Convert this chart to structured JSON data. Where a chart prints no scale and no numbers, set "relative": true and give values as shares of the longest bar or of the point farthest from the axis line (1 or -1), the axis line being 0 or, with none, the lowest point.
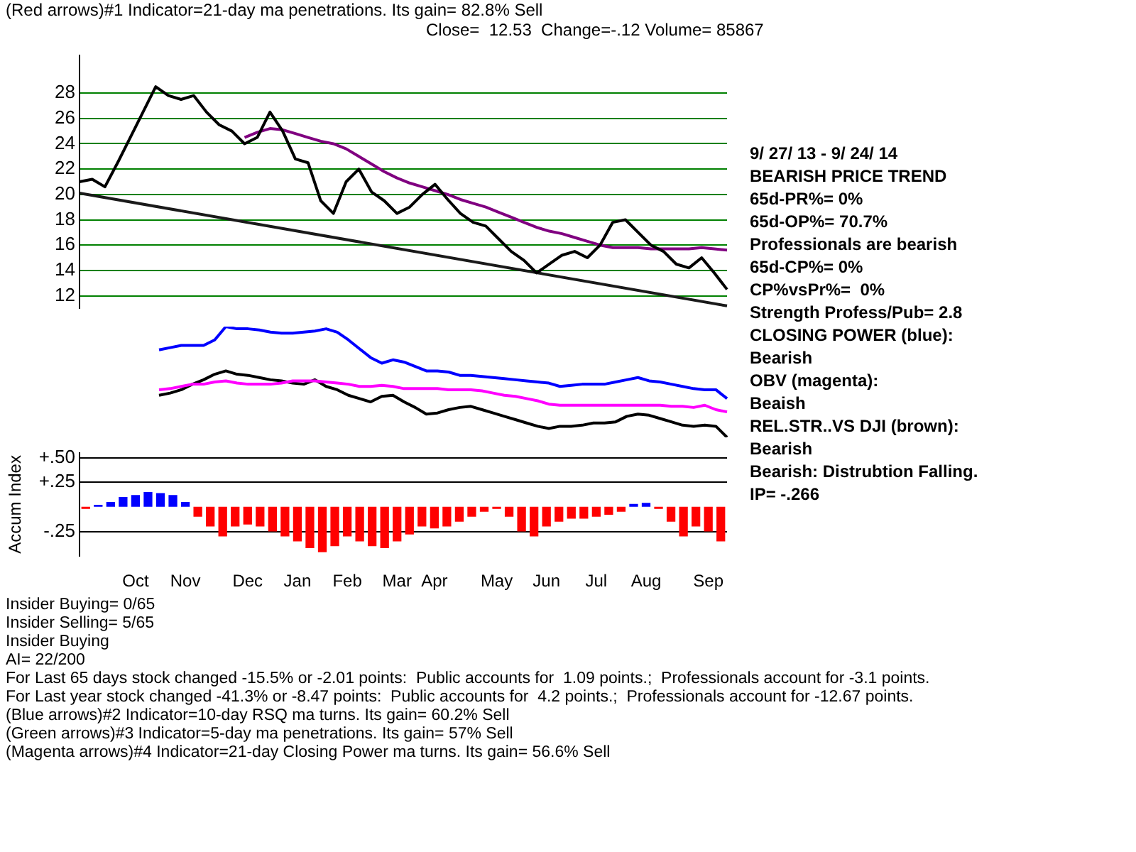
{
  "chart_data": [
    {
      "type": "line",
      "title": "(Red arrows)#1 Indicator=21-day ma penetrations. Its gain= 82.8% Sell",
      "subtitle": "Close=  12.53  Change=-.12 Volume= 85867",
      "categories": [
        null,
        null,
        null,
        null,
        null,
        null,
        null,
        null,
        null,
        null,
        null,
        null,
        null,
        null,
        null,
        null,
        null,
        null,
        null,
        null,
        null,
        null,
        null,
        null,
        null,
        null,
        null,
        null,
        null,
        null,
        null,
        null,
        null,
        null,
        null,
        null,
        null,
        null,
        null,
        null,
        null,
        null,
        null,
        null,
        null,
        null,
        null,
        null,
        null,
        null,
        null,
        null
      ],
      "series": [
        {
          "color": "#000000",
          "values": [
            21.0,
            21.2,
            20.6,
            22.5,
            24.5,
            26.5,
            28.5,
            27.8,
            27.5,
            27.8,
            26.5,
            25.5,
            25.0,
            24.0,
            24.5,
            26.5,
            25.0,
            22.8,
            22.5,
            19.5,
            18.5,
            21.0,
            22.0,
            20.2,
            19.5,
            18.5,
            19.0,
            20.0,
            20.8,
            19.6,
            18.5,
            17.8,
            17.5,
            16.5,
            15.5,
            14.8,
            13.8,
            14.5,
            15.2,
            15.5,
            15.0,
            16.0,
            17.8,
            18.0,
            17.0,
            16.0,
            15.5,
            14.5,
            14.2,
            15.0,
            13.8,
            12.5
          ]
        },
        {
          "color": "#800080",
          "values": [
            null,
            null,
            null,
            null,
            null,
            null,
            null,
            null,
            null,
            null,
            null,
            null,
            null,
            24.5,
            24.9,
            25.2,
            25.1,
            24.8,
            24.5,
            24.2,
            24.0,
            23.6,
            23.0,
            22.4,
            21.8,
            21.3,
            20.9,
            20.6,
            20.3,
            20.0,
            19.6,
            19.3,
            19.0,
            18.6,
            18.2,
            17.8,
            17.4,
            17.1,
            16.9,
            16.6,
            16.3,
            16.0,
            15.8,
            15.8,
            15.8,
            15.7,
            15.7,
            15.7,
            15.7,
            15.8,
            15.7,
            15.6
          ]
        },
        {
          "color": "#1a1a1a",
          "values": [
            20.1,
            null,
            null,
            null,
            null,
            null,
            null,
            null,
            null,
            null,
            null,
            null,
            null,
            null,
            null,
            null,
            null,
            null,
            null,
            null,
            null,
            null,
            null,
            null,
            null,
            null,
            null,
            null,
            null,
            null,
            null,
            null,
            null,
            null,
            null,
            null,
            null,
            null,
            null,
            null,
            null,
            null,
            null,
            null,
            null,
            null,
            null,
            null,
            null,
            null,
            null,
            11.2
          ]
        }
      ],
      "ylim": [
        11,
        31
      ],
      "yticks": [
        12,
        14,
        16,
        18,
        20,
        22,
        24,
        26,
        28
      ],
      "grid": "y",
      "tick_labels": "y",
      "marker": "none",
      "annotations": [
        "9/ 27/ 13 - 9/ 24/ 14",
        "BEARISH PRICE TREND",
        "65d-PR%= 0%",
        "65d-OP%= 70.7%",
        "Professionals are bearish",
        "65d-CP%= 0%",
        "CP%vsPr%=  0%",
        "Strength Profess/Pub= 2.8",
        "CLOSING POWER (blue):",
        "Bearish",
        "OBV (magenta):",
        "Beaish",
        "REL.STR..VS DJI (brown):",
        "Bearish",
        "Bearish: Distrubtion Falling.",
        "IP= -.266"
      ]
    },
    {
      "type": "line",
      "relative": true,
      "tick_labels": false,
      "marker": "none",
      "categories": [
        null,
        null,
        null,
        null,
        null,
        null,
        null,
        null,
        null,
        null,
        null,
        null,
        null,
        null,
        null,
        null,
        null,
        null,
        null,
        null,
        null,
        null,
        null,
        null,
        null,
        null,
        null,
        null,
        null,
        null,
        null,
        null,
        null,
        null,
        null,
        null,
        null,
        null,
        null,
        null,
        null,
        null,
        null,
        null,
        null,
        null,
        null,
        null,
        null,
        null,
        null,
        null
      ],
      "series": [
        {
          "color": "#0000ff",
          "values": [
            0.79,
            0.81,
            0.83,
            0.83,
            0.83,
            0.88,
            1.0,
            0.98,
            0.98,
            0.97,
            0.95,
            0.94,
            0.94,
            0.95,
            0.96,
            0.98,
            0.95,
            0.88,
            0.8,
            0.72,
            0.67,
            0.7,
            0.68,
            0.64,
            0.6,
            0.6,
            0.59,
            0.56,
            0.56,
            0.55,
            0.54,
            0.53,
            0.52,
            0.51,
            0.5,
            0.49,
            0.46,
            0.47,
            0.48,
            0.48,
            0.48,
            0.5,
            0.52,
            0.54,
            0.51,
            0.5,
            0.48,
            0.46,
            0.44,
            0.43,
            0.43,
            0.35
          ]
        },
        {
          "color": "#ff00ff",
          "values": [
            0.43,
            0.44,
            0.46,
            0.48,
            0.48,
            0.5,
            0.51,
            0.49,
            0.48,
            0.48,
            0.48,
            0.49,
            0.51,
            0.51,
            0.51,
            0.5,
            0.49,
            0.48,
            0.46,
            0.46,
            0.47,
            0.46,
            0.44,
            0.44,
            0.44,
            0.44,
            0.43,
            0.43,
            0.43,
            0.42,
            0.4,
            0.38,
            0.37,
            0.35,
            0.33,
            0.3,
            0.29,
            0.29,
            0.29,
            0.29,
            0.29,
            0.29,
            0.29,
            0.29,
            0.29,
            0.29,
            0.28,
            0.28,
            0.27,
            0.29,
            0.25,
            0.23
          ]
        },
        {
          "color": "#000000",
          "values": [
            0.38,
            0.4,
            0.43,
            0.48,
            0.52,
            0.57,
            0.6,
            0.57,
            0.56,
            0.54,
            0.52,
            0.51,
            0.49,
            0.48,
            0.52,
            0.46,
            0.43,
            0.38,
            0.35,
            0.32,
            0.37,
            0.38,
            0.32,
            0.27,
            0.21,
            0.22,
            0.25,
            0.27,
            0.28,
            0.25,
            0.22,
            0.19,
            0.16,
            0.13,
            0.1,
            0.08,
            0.1,
            0.1,
            0.11,
            0.13,
            0.13,
            0.14,
            0.19,
            0.21,
            0.2,
            0.17,
            0.14,
            0.11,
            0.1,
            0.11,
            0.1,
            0.0
          ]
        }
      ]
    },
    {
      "type": "bar",
      "ylabel": "Accum Index",
      "categories": [
        null,
        null,
        null,
        null,
        "Oct",
        null,
        null,
        null,
        "Nov",
        null,
        null,
        null,
        null,
        "Dec",
        null,
        null,
        null,
        "Jan",
        null,
        null,
        null,
        "Feb",
        null,
        null,
        null,
        "Mar",
        null,
        null,
        "Apr",
        null,
        null,
        null,
        null,
        "May",
        null,
        null,
        null,
        "Jun",
        null,
        null,
        null,
        "Jul",
        null,
        null,
        null,
        "Aug",
        null,
        null,
        null,
        null,
        "Sep",
        null
      ],
      "values": [
        -0.02,
        0.02,
        0.05,
        0.1,
        0.12,
        0.15,
        0.14,
        0.12,
        0.05,
        -0.1,
        -0.2,
        -0.3,
        -0.2,
        -0.18,
        -0.2,
        -0.25,
        -0.3,
        -0.35,
        -0.42,
        -0.46,
        -0.4,
        -0.3,
        -0.35,
        -0.4,
        -0.42,
        -0.35,
        -0.28,
        -0.2,
        -0.22,
        -0.2,
        -0.15,
        -0.1,
        -0.05,
        -0.02,
        -0.1,
        -0.25,
        -0.3,
        -0.2,
        -0.15,
        -0.12,
        -0.12,
        -0.1,
        -0.08,
        -0.05,
        0.03,
        0.04,
        -0.02,
        -0.15,
        -0.3,
        -0.2,
        -0.25,
        -0.35
      ],
      "colors": [
        "#ff0000",
        "#0000ff",
        "#0000ff",
        "#0000ff",
        "#0000ff",
        "#0000ff",
        "#0000ff",
        "#0000ff",
        "#0000ff",
        "#ff0000",
        "#ff0000",
        "#ff0000",
        "#ff0000",
        "#ff0000",
        "#ff0000",
        "#ff0000",
        "#ff0000",
        "#ff0000",
        "#ff0000",
        "#ff0000",
        "#ff0000",
        "#ff0000",
        "#ff0000",
        "#ff0000",
        "#ff0000",
        "#ff0000",
        "#ff0000",
        "#ff0000",
        "#ff0000",
        "#ff0000",
        "#ff0000",
        "#ff0000",
        "#ff0000",
        "#ff0000",
        "#ff0000",
        "#ff0000",
        "#ff0000",
        "#ff0000",
        "#ff0000",
        "#ff0000",
        "#ff0000",
        "#ff0000",
        "#ff0000",
        "#ff0000",
        "#0000ff",
        "#0000ff",
        "#ff0000",
        "#ff0000",
        "#ff0000",
        "#ff0000",
        "#ff0000",
        "#ff0000"
      ],
      "ylim": [
        -0.5,
        0.55
      ],
      "yticks": [
        {
          "value": -0.25,
          "label": "-.25"
        },
        {
          "value": 0.25,
          "label": "+.25"
        },
        {
          "value": 0.5,
          "label": "+.50"
        }
      ],
      "grid": "y",
      "annotations": [
        "Insider Buying= 0/65",
        "Insider Selling= 5/65",
        "Insider Buying",
        "AI= 22/200",
        "For Last 65 days stock changed -15.5% or -2.01 points:  Public accounts for  1.09 points.;  Professionals account for -3.1 points.",
        "For Last year stock changed -41.3% or -8.47 points:  Public accounts for  4.2 points.;  Professionals account for -12.67 points.",
        "(Blue arrows)#2 Indicator=10-day RSQ ma turns. Its gain= 60.2% Sell",
        "(Green arrows)#3 Indicator=5-day ma penetrations. Its gain= 57% Sell",
        "(Magenta arrows)#4 Indicator=21-day Closing Power ma turns. Its gain= 56.6% Sell"
      ]
    }
  ]
}
